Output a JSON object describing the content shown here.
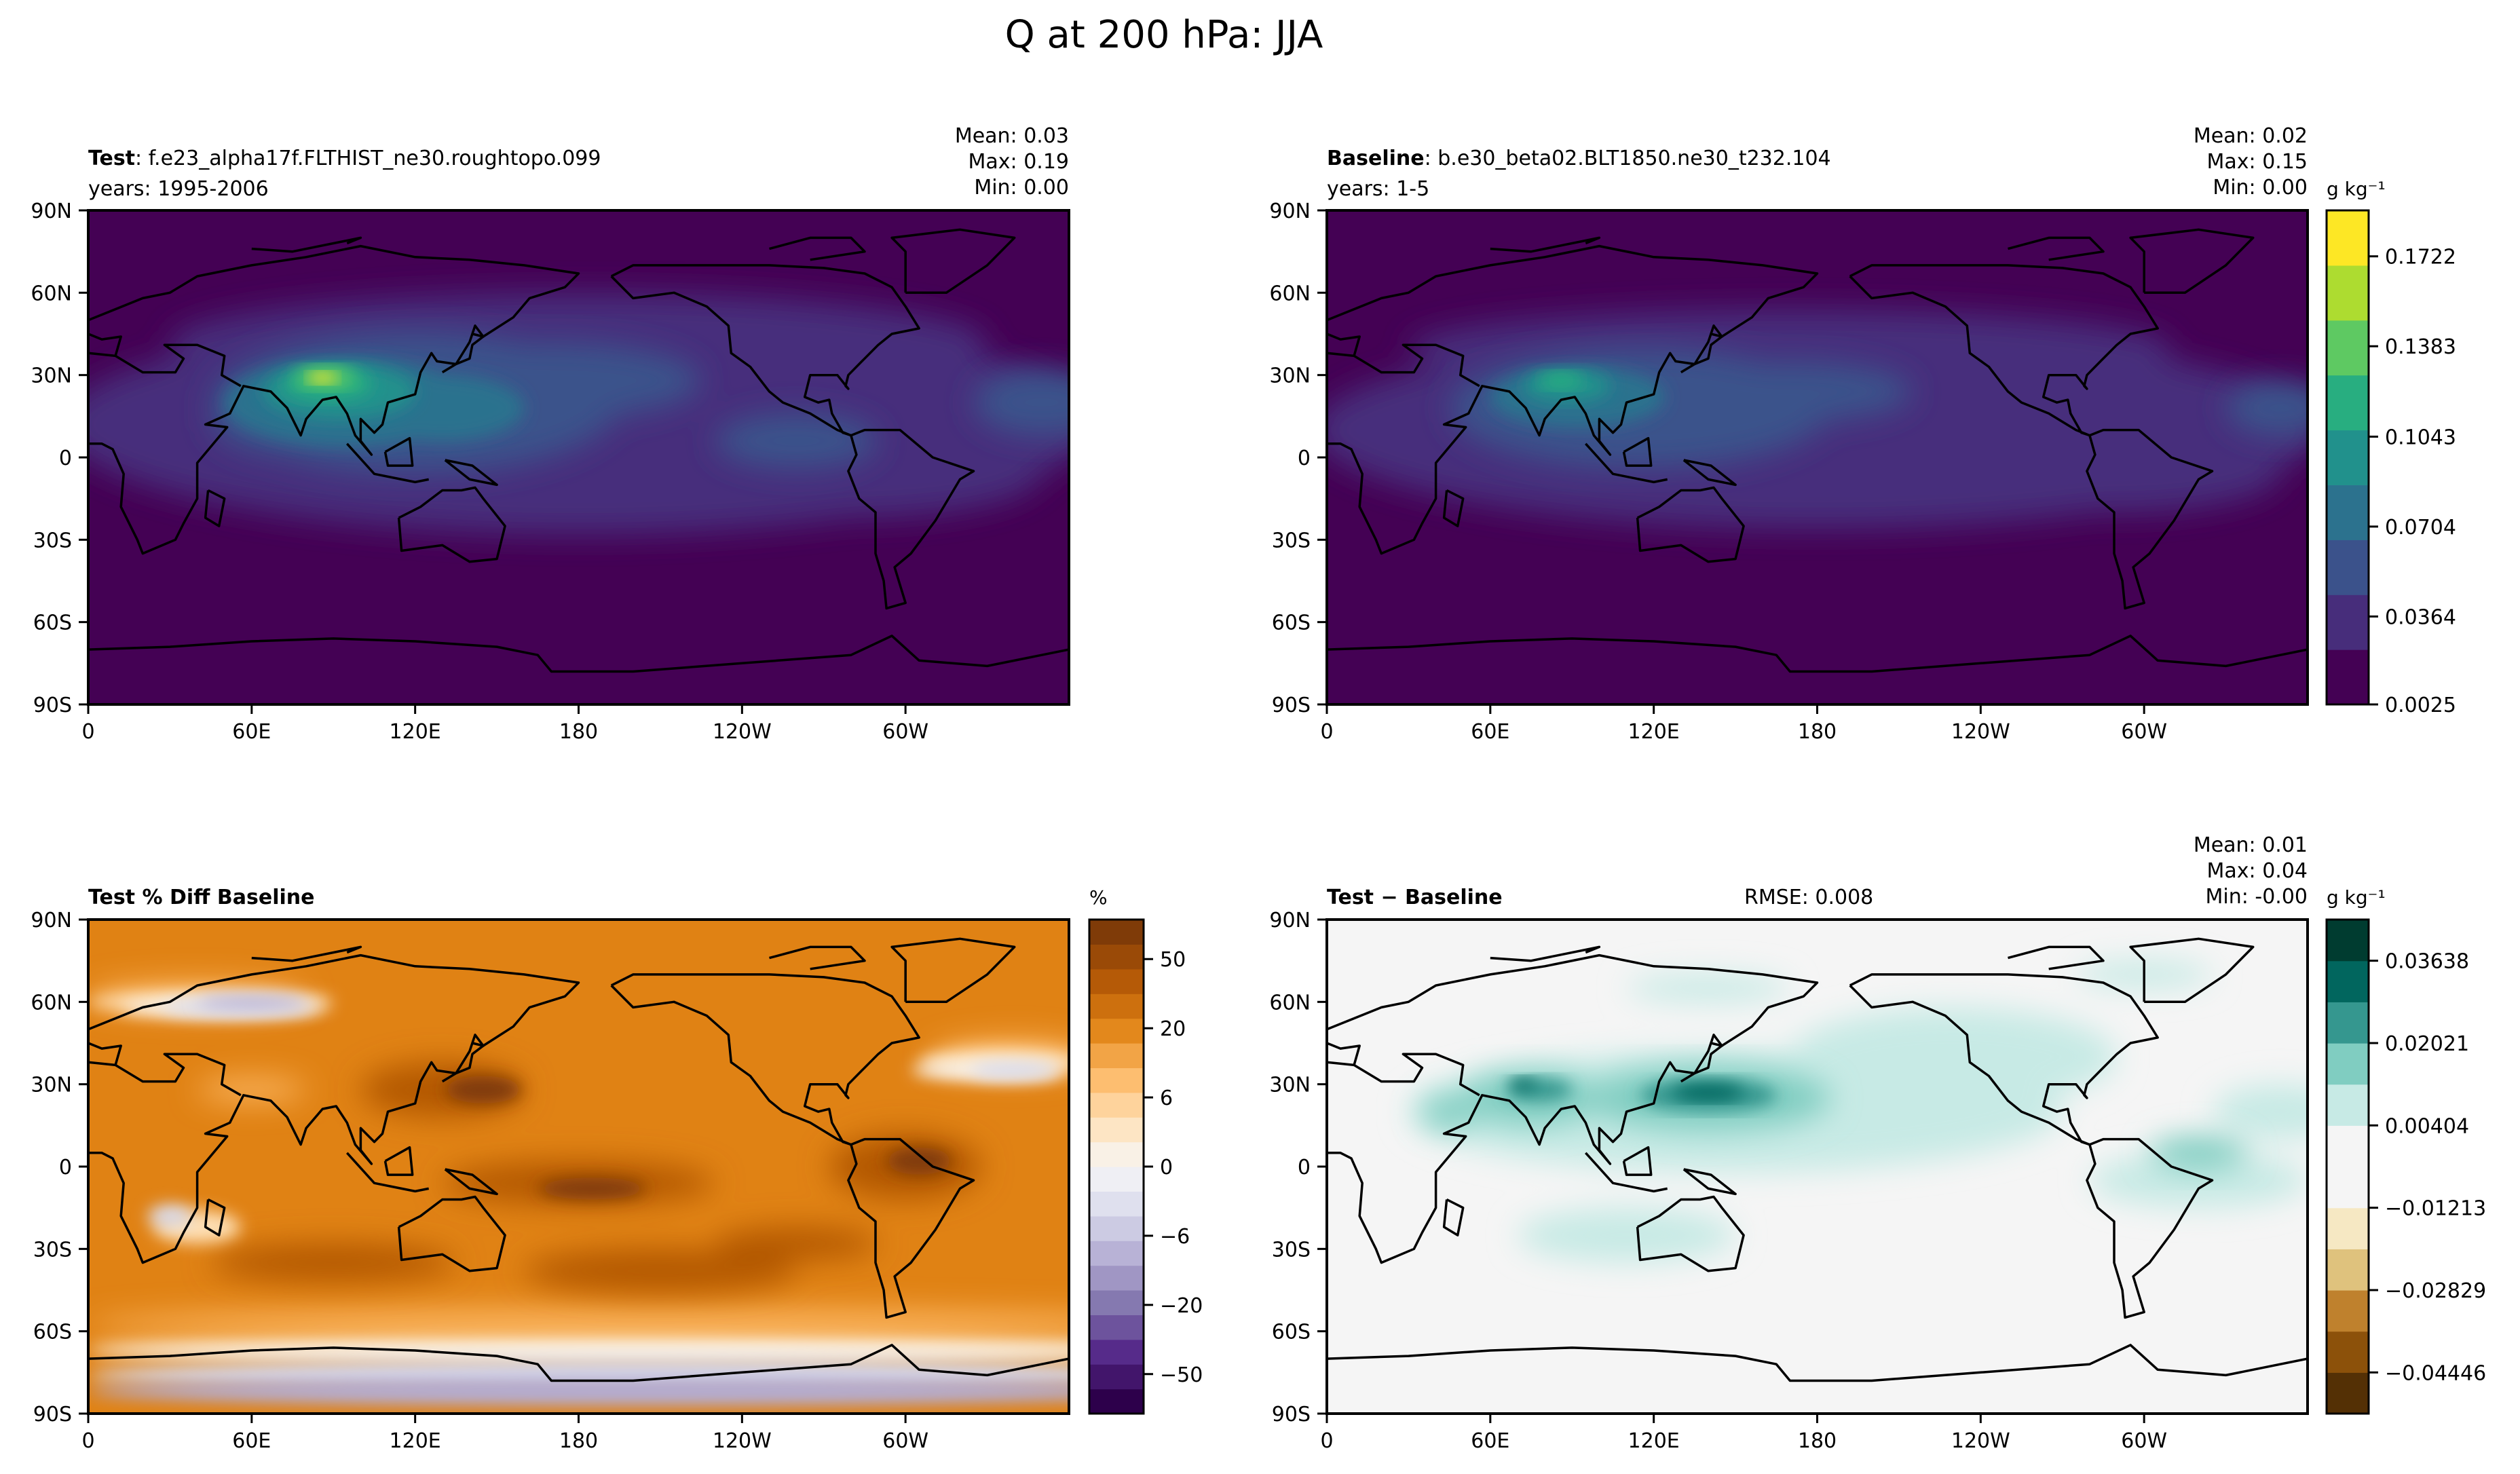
{
  "figure": {
    "title": "Q at 200 hPa: JJA"
  },
  "colors": {
    "viridis": [
      "#440154",
      "#472d7b",
      "#3b528b",
      "#2c728e",
      "#21918c",
      "#28ae80",
      "#5ec962",
      "#addc30",
      "#fde725"
    ],
    "brbg": [
      "#543005",
      "#8c510a",
      "#bf812d",
      "#dfc27d",
      "#f6e8c3",
      "#f5f5f5",
      "#c7eae5",
      "#80cdc1",
      "#35978f",
      "#01665e",
      "#003c30"
    ],
    "puor": [
      "#2d004b",
      "#542788",
      "#8073ac",
      "#b2abd2",
      "#d8daeb",
      "#f7f7f7",
      "#fee0b6",
      "#fdb863",
      "#e08214",
      "#b35806",
      "#7f3b08"
    ]
  },
  "chart_data": [
    {
      "type": "heatmap",
      "panel": "test",
      "title_bold": "Test",
      "title_rest": ": f.e23_alpha17f.FLTHIST_ne30.roughtopo.099",
      "years": "years: 1995-2006",
      "stats": [
        "Mean:  0.03",
        "Max:  0.19",
        "Min:  0.00"
      ],
      "xticks": [
        "0",
        "60E",
        "120E",
        "180",
        "120W",
        "60W"
      ],
      "yticks": [
        "90N",
        "60N",
        "30N",
        "0",
        "30S",
        "60S",
        "90S"
      ],
      "field": "q_test"
    },
    {
      "type": "heatmap",
      "panel": "baseline",
      "title_bold": "Baseline",
      "title_rest": ": b.e30_beta02.BLT1850.ne30_t232.104",
      "years": "years: 1-5",
      "stats": [
        "Mean:  0.02",
        "Max:  0.15",
        "Min:  0.00"
      ],
      "xticks": [
        "0",
        "60E",
        "120E",
        "180",
        "120W",
        "60W"
      ],
      "yticks": [
        "90N",
        "60N",
        "30N",
        "0",
        "30S",
        "60S",
        "90S"
      ],
      "field": "q_base",
      "colorbar": {
        "label": "g kg⁻¹",
        "ticks": [
          "0.1722",
          "0.1383",
          "0.1043",
          "0.0704",
          "0.0364",
          "0.0025"
        ],
        "range": [
          0.0025,
          0.1892
        ]
      }
    },
    {
      "type": "heatmap",
      "panel": "pctdiff",
      "title_bold": "Test % Diff Baseline",
      "xticks": [
        "0",
        "60E",
        "120E",
        "180",
        "120W",
        "60W"
      ],
      "yticks": [
        "90N",
        "60N",
        "30N",
        "0",
        "30S",
        "60S",
        "90S"
      ],
      "field": "pct",
      "colorbar": {
        "label": "%",
        "ticks": [
          "50",
          "20",
          "6",
          "0",
          "−6",
          "−20",
          "−50"
        ]
      }
    },
    {
      "type": "heatmap",
      "panel": "diff",
      "title_bold": "Test − Baseline",
      "rmse": "RMSE: 0.008",
      "stats": [
        "Mean:  0.01",
        "Max:  0.04",
        "Min:  -0.00"
      ],
      "xticks": [
        "0",
        "60E",
        "120E",
        "180",
        "120W",
        "60W"
      ],
      "yticks": [
        "90N",
        "60N",
        "30N",
        "0",
        "30S",
        "60S",
        "90S"
      ],
      "field": "diff",
      "colorbar": {
        "label": "g kg⁻¹",
        "ticks": [
          "0.03638",
          "0.02021",
          "0.00404",
          "−0.01213",
          "−0.02829",
          "−0.04446"
        ],
        "range": [
          -0.05254,
          0.04446
        ]
      }
    }
  ]
}
